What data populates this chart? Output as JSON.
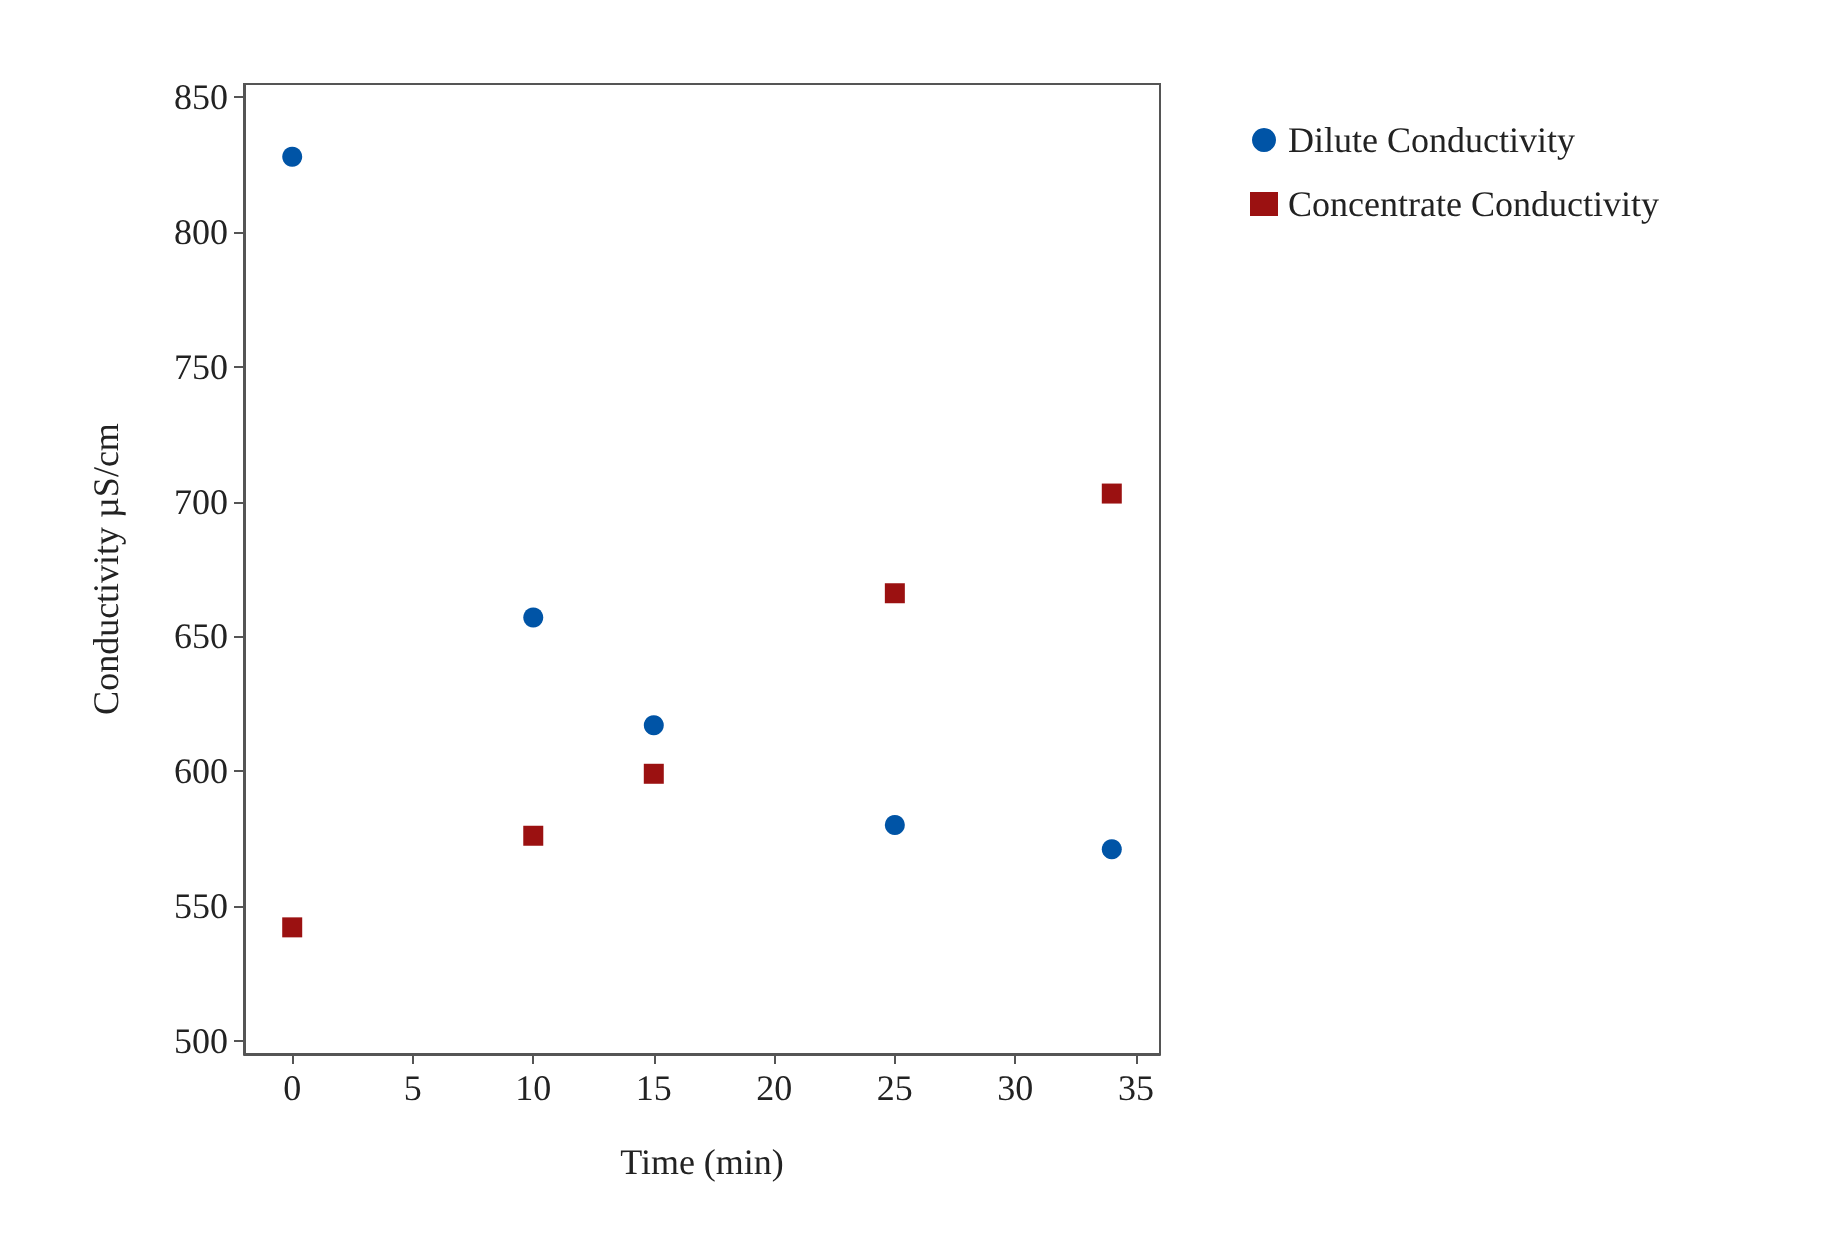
{
  "chart_data": {
    "type": "scatter",
    "xlabel": "Time (min)",
    "ylabel": "Conductivity µS/cm",
    "x": [
      0,
      10,
      15,
      25,
      34
    ],
    "series": [
      {
        "name": "Dilute Conductivity",
        "color": "#0054a6",
        "marker": "circle",
        "values": [
          828,
          657,
          617,
          580,
          571
        ]
      },
      {
        "name": "Concentrate Conductivity",
        "color": "#9b1111",
        "marker": "square",
        "values": [
          542,
          576,
          599,
          666,
          703
        ]
      }
    ],
    "xlim": [
      -2,
      36
    ],
    "xticks": [
      0,
      5,
      10,
      15,
      20,
      25,
      30,
      35
    ],
    "ylim": [
      495,
      855
    ],
    "yticks": [
      500,
      550,
      600,
      650,
      700,
      750,
      800,
      850
    ],
    "grid": false,
    "legend": "top right"
  }
}
